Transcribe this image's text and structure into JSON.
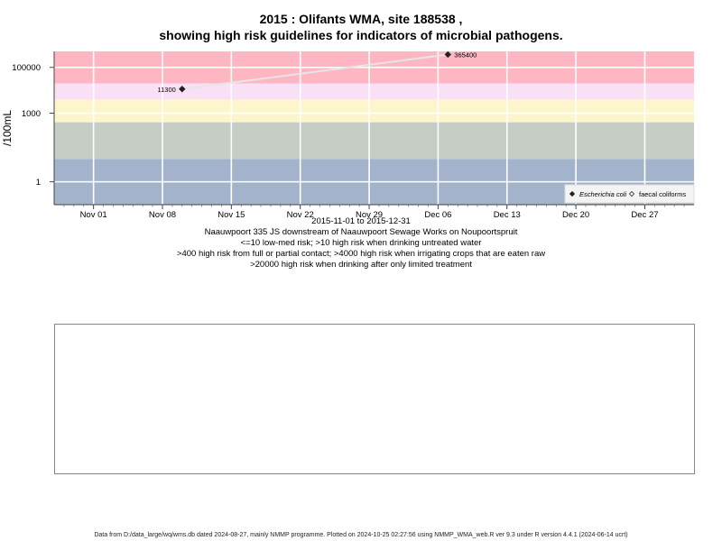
{
  "title_line1": "2015 : Olifants WMA, site 188538 ,",
  "title_line2": "showing high risk guidelines for indicators of microbial pathogens.",
  "chart_data": {
    "type": "scatter",
    "ylabel": "/100mL",
    "xlabel": "",
    "y_scale": "log10",
    "ylim": [
      0.1,
      500000
    ],
    "xlim": [
      "2015-10-28",
      "2016-01-01"
    ],
    "y_ticks": [
      {
        "value": 1,
        "label": "1"
      },
      {
        "value": 1000,
        "label": "1000"
      },
      {
        "value": 100000,
        "label": "100000"
      }
    ],
    "x_ticks": [
      {
        "date": "2015-11-01",
        "label": "Nov 01"
      },
      {
        "date": "2015-11-08",
        "label": "Nov 08"
      },
      {
        "date": "2015-11-15",
        "label": "Nov 15"
      },
      {
        "date": "2015-11-22",
        "label": "Nov 22"
      },
      {
        "date": "2015-11-29",
        "label": "Nov 29"
      },
      {
        "date": "2015-12-06",
        "label": "Dec 06"
      },
      {
        "date": "2015-12-13",
        "label": "Dec 13"
      },
      {
        "date": "2015-12-20",
        "label": "Dec 20"
      },
      {
        "date": "2015-12-27",
        "label": "Dec 27"
      }
    ],
    "grid": true,
    "risk_bands": [
      {
        "from": 0.1,
        "to": 10,
        "color": "#a3b3cb"
      },
      {
        "from": 10,
        "to": 400,
        "color": "#c5cdc5"
      },
      {
        "from": 400,
        "to": 4000,
        "color": "#fdf6cd"
      },
      {
        "from": 4000,
        "to": 20000,
        "color": "#fae0f6"
      },
      {
        "from": 20000,
        "to": 500000,
        "color": "#ffb6c3"
      }
    ],
    "series": [
      {
        "name": "Escherichia coli",
        "marker": "diamond-filled",
        "color": "#222222",
        "line_color": "#e6e6e6",
        "points": [
          {
            "date": "2015-11-10",
            "value": 11300,
            "label": "11300",
            "label_side": "left"
          },
          {
            "date": "2015-12-07",
            "value": 365400,
            "label": "365400",
            "label_side": "right"
          }
        ]
      },
      {
        "name": "faecal coliforms",
        "marker": "diamond-open",
        "color": "#222222",
        "points": []
      }
    ],
    "legend": {
      "position": "bottom-right"
    }
  },
  "date_range": "2015-11-01 to 2015-12-31",
  "site_description": "Naauwpoort 335 JS downstream of Naauwpoort Sewage Works on Noupoortspruit",
  "guideline_lines": [
    "<=10 low-med risk; >10 high risk when drinking untreated water",
    ">400 high risk from full or partial contact; >4000 high risk when irrigating crops that are eaten raw",
    ">20000 high risk when drinking after only limited treatment"
  ],
  "footer": "Data from D:/data_large/wq/wms.db dated 2024-08-27, mainly NMMP programme. Plotted on 2024-10-25 02:27:56 using NMMP_WMA_web.R ver 9.3 under R version 4.4.1 (2024-06-14 ucrt)"
}
